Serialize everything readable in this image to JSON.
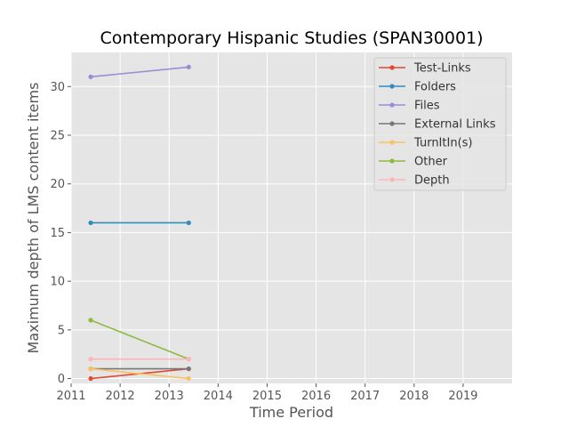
{
  "chart_data": {
    "type": "line",
    "title": "Contemporary Hispanic Studies (SPAN30001)",
    "xlabel": "Time Period",
    "ylabel": "Maximum depth of LMS content items",
    "xlim": [
      2011,
      2020
    ],
    "ylim": [
      -0.5,
      33.5
    ],
    "x_ticks": [
      2011,
      2012,
      2013,
      2014,
      2015,
      2016,
      2017,
      2018,
      2019
    ],
    "y_ticks": [
      0,
      5,
      10,
      15,
      20,
      25,
      30
    ],
    "x": [
      2011.4,
      2013.4
    ],
    "grid": true,
    "legend_position": "upper-right",
    "series": [
      {
        "name": "Test-Links",
        "color": "#e24a33",
        "values": [
          0,
          1
        ]
      },
      {
        "name": "Folders",
        "color": "#348abd",
        "values": [
          16,
          16
        ]
      },
      {
        "name": "Files",
        "color": "#988ed5",
        "values": [
          31,
          32
        ]
      },
      {
        "name": "External Links",
        "color": "#777777",
        "values": [
          1,
          1
        ]
      },
      {
        "name": "TurnItIn(s)",
        "color": "#fbc15e",
        "values": [
          1,
          0
        ]
      },
      {
        "name": "Other",
        "color": "#8eba42",
        "values": [
          6,
          2
        ]
      },
      {
        "name": "Depth",
        "color": "#ffb5b8",
        "values": [
          2,
          2
        ]
      }
    ]
  }
}
